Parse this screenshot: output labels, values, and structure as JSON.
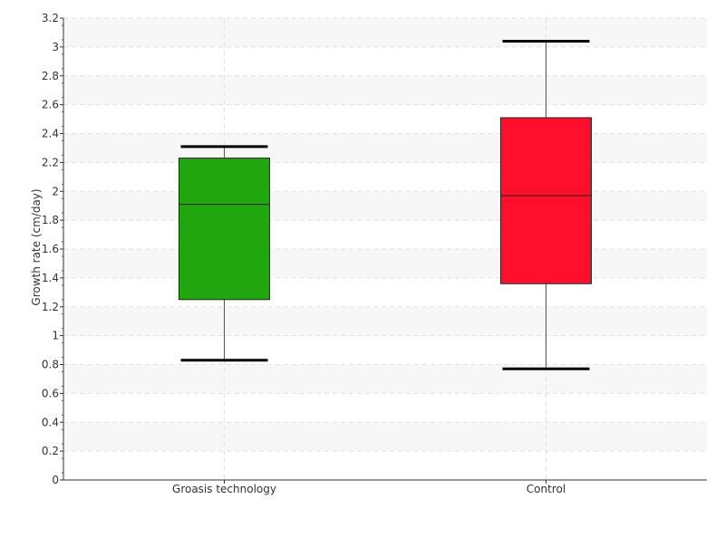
{
  "chart_data": {
    "type": "boxplot",
    "title": "",
    "xlabel": "",
    "ylabel": "Growth rate (cm/day)",
    "ylim": [
      0,
      3.2
    ],
    "y_ticks": [
      "0",
      "0.2",
      "0.4",
      "0.6",
      "0.8",
      "1",
      "1.2",
      "1.4",
      "1.6",
      "1.8",
      "2",
      "2.2",
      "2.4",
      "2.6",
      "2.8",
      "3",
      "3.2"
    ],
    "grid": true,
    "categories": [
      "Groasis technology",
      "Control"
    ],
    "boxes": [
      {
        "category": "Groasis technology",
        "min": 0.83,
        "q1": 1.25,
        "median": 1.91,
        "q3": 2.23,
        "max": 2.31,
        "color": "#22a60f"
      },
      {
        "category": "Control",
        "min": 0.77,
        "q1": 1.36,
        "median": 1.97,
        "q3": 2.51,
        "max": 3.04,
        "color": "#ff0f2b"
      }
    ]
  }
}
